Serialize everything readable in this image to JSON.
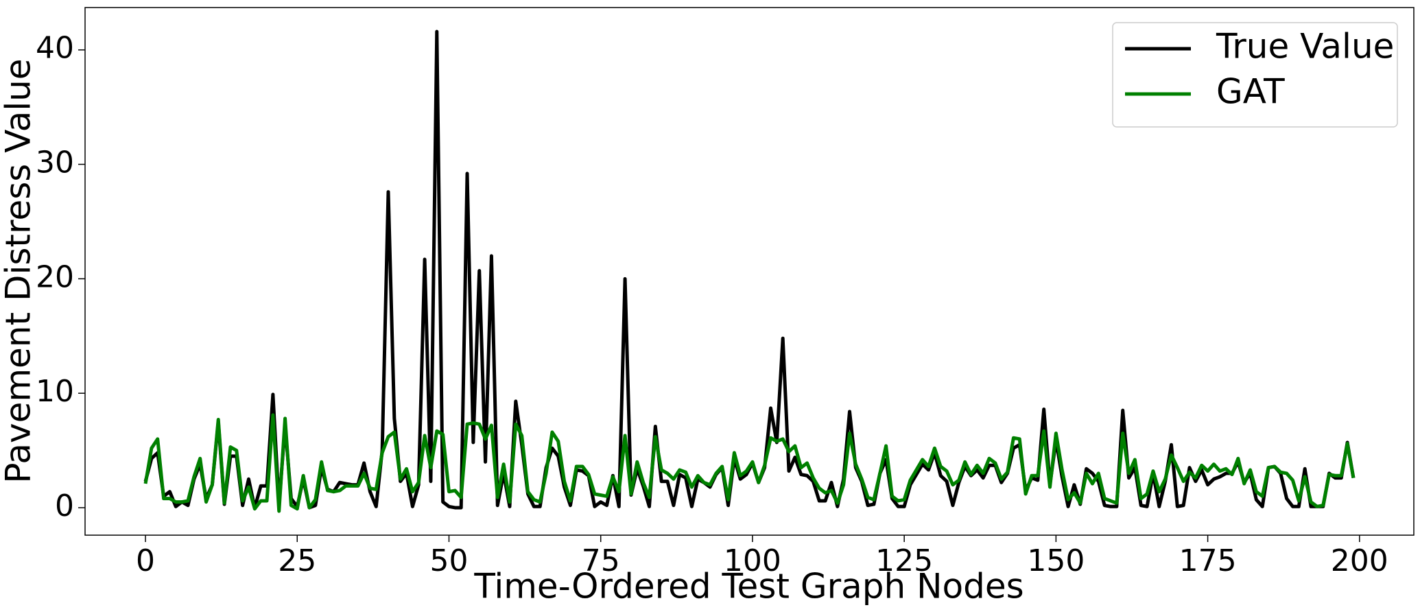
{
  "chart_data": {
    "type": "line",
    "xlabel": "Time-Ordered Test Graph Nodes",
    "ylabel": "Pavement Distress Value",
    "x": [
      0,
      1,
      2,
      3,
      4,
      5,
      6,
      7,
      8,
      9,
      10,
      11,
      12,
      13,
      14,
      15,
      16,
      17,
      18,
      19,
      20,
      21,
      22,
      23,
      24,
      25,
      26,
      27,
      28,
      29,
      30,
      31,
      32,
      33,
      34,
      35,
      36,
      37,
      38,
      39,
      40,
      41,
      42,
      43,
      44,
      45,
      46,
      47,
      48,
      49,
      50,
      51,
      52,
      53,
      54,
      55,
      56,
      57,
      58,
      59,
      60,
      61,
      62,
      63,
      64,
      65,
      66,
      67,
      68,
      69,
      70,
      71,
      72,
      73,
      74,
      75,
      76,
      77,
      78,
      79,
      80,
      81,
      82,
      83,
      84,
      85,
      86,
      87,
      88,
      89,
      90,
      91,
      92,
      93,
      94,
      95,
      96,
      97,
      98,
      99,
      100,
      101,
      102,
      103,
      104,
      105,
      106,
      107,
      108,
      109,
      110,
      111,
      112,
      113,
      114,
      115,
      116,
      117,
      118,
      119,
      120,
      121,
      122,
      123,
      124,
      125,
      126,
      127,
      128,
      129,
      130,
      131,
      132,
      133,
      134,
      135,
      136,
      137,
      138,
      139,
      140,
      141,
      142,
      143,
      144,
      145,
      146,
      147,
      148,
      149,
      150,
      151,
      152,
      153,
      154,
      155,
      156,
      157,
      158,
      159,
      160,
      161,
      162,
      163,
      164,
      165,
      166,
      167,
      168,
      169,
      170,
      171,
      172,
      173,
      174,
      175,
      176,
      177,
      178,
      179,
      180,
      181,
      182,
      183,
      184,
      185,
      186,
      187,
      188,
      189,
      190,
      191,
      192,
      193,
      194,
      195,
      196,
      197,
      198,
      199
    ],
    "series": [
      {
        "name": "True Value",
        "color": "#000000",
        "values": [
          2.3,
          4.3,
          4.8,
          1.0,
          1.4,
          0.1,
          0.5,
          0.2,
          2.5,
          3.8,
          0.8,
          2.0,
          7.5,
          0.3,
          4.5,
          4.5,
          0.2,
          2.5,
          0.0,
          1.9,
          1.9,
          9.9,
          0.2,
          7.2,
          0.8,
          0.1,
          2.5,
          0.0,
          0.2,
          3.5,
          1.6,
          1.4,
          2.2,
          2.1,
          2.0,
          2.0,
          3.9,
          1.4,
          0.1,
          5.0,
          27.6,
          7.8,
          2.3,
          3.0,
          0.1,
          2.0,
          21.7,
          2.3,
          41.6,
          0.5,
          0.1,
          0.0,
          0.0,
          29.2,
          5.7,
          20.7,
          4.0,
          22.0,
          0.2,
          3.0,
          0.1,
          9.3,
          5.5,
          1.2,
          0.1,
          0.1,
          3.5,
          5.2,
          4.5,
          1.8,
          0.2,
          3.3,
          3.2,
          2.8,
          0.1,
          0.5,
          0.2,
          2.8,
          0.1,
          20.0,
          1.1,
          3.4,
          1.9,
          0.1,
          7.1,
          2.3,
          2.3,
          0.2,
          2.9,
          2.6,
          0.1,
          2.5,
          2.2,
          1.8,
          2.9,
          3.5,
          0.2,
          4.3,
          2.5,
          2.9,
          3.9,
          2.2,
          3.5,
          8.7,
          5.7,
          14.8,
          3.2,
          4.4,
          2.9,
          2.8,
          2.3,
          0.6,
          0.6,
          2.2,
          0.1,
          2.5,
          8.4,
          3.5,
          2.3,
          0.2,
          0.3,
          3.0,
          4.2,
          0.8,
          0.1,
          0.1,
          2.0,
          2.9,
          3.8,
          3.3,
          4.8,
          2.8,
          2.3,
          0.2,
          2.2,
          3.6,
          2.8,
          3.3,
          2.6,
          3.7,
          3.7,
          2.2,
          3.0,
          5.2,
          5.5,
          1.5,
          2.6,
          2.4,
          8.6,
          2.0,
          5.9,
          2.7,
          0.1,
          2.0,
          0.3,
          3.4,
          3.0,
          2.3,
          0.2,
          0.1,
          0.1,
          8.5,
          2.6,
          3.5,
          0.2,
          0.1,
          3.0,
          0.1,
          2.3,
          5.5,
          0.1,
          0.2,
          3.5,
          2.3,
          3.3,
          2.0,
          2.5,
          2.7,
          3.0,
          3.0,
          4.0,
          2.2,
          3.0,
          0.7,
          0.1,
          3.5,
          3.6,
          3.0,
          0.8,
          0.1,
          0.1,
          3.4,
          0.1,
          0.1,
          0.1,
          3.0,
          2.6,
          2.6,
          5.7,
          2.6
        ]
      },
      {
        "name": "GAT",
        "color": "#008000",
        "values": [
          2.1,
          5.2,
          6.0,
          0.8,
          0.8,
          0.5,
          0.5,
          0.6,
          2.7,
          4.3,
          0.5,
          2.0,
          7.7,
          0.4,
          5.3,
          5.0,
          0.6,
          1.8,
          -0.1,
          0.6,
          0.6,
          8.1,
          -0.3,
          7.8,
          0.2,
          -0.1,
          2.8,
          0.0,
          0.7,
          4.0,
          1.5,
          1.4,
          1.5,
          1.9,
          1.9,
          1.9,
          3.0,
          1.7,
          1.6,
          4.8,
          6.2,
          6.6,
          2.5,
          3.4,
          1.4,
          2.2,
          6.3,
          3.5,
          6.7,
          6.4,
          1.4,
          1.5,
          0.9,
          7.3,
          7.4,
          7.3,
          6.0,
          7.2,
          0.9,
          3.8,
          0.5,
          7.3,
          6.3,
          1.4,
          0.7,
          0.5,
          3.0,
          6.6,
          5.8,
          2.3,
          0.6,
          3.6,
          3.6,
          2.9,
          1.2,
          1.1,
          1.0,
          2.7,
          1.4,
          6.3,
          1.2,
          4.0,
          2.2,
          0.9,
          6.2,
          3.3,
          3.0,
          2.5,
          3.3,
          3.1,
          1.8,
          2.8,
          2.2,
          2.0,
          3.0,
          3.6,
          0.7,
          4.8,
          2.8,
          3.2,
          4.0,
          2.2,
          3.7,
          6.1,
          5.8,
          6.0,
          4.9,
          5.4,
          3.5,
          3.9,
          2.6,
          1.7,
          1.3,
          1.5,
          0.4,
          2.0,
          6.5,
          3.8,
          2.5,
          0.9,
          0.7,
          3.0,
          5.4,
          1.0,
          0.6,
          0.7,
          2.4,
          3.3,
          4.2,
          3.6,
          5.2,
          3.6,
          3.2,
          2.0,
          2.4,
          4.0,
          2.9,
          3.7,
          3.0,
          4.3,
          3.9,
          2.5,
          3.1,
          6.1,
          6.0,
          1.2,
          2.8,
          2.8,
          6.7,
          1.8,
          6.5,
          3.3,
          0.7,
          1.3,
          0.4,
          3.0,
          2.1,
          3.0,
          0.8,
          0.6,
          0.4,
          6.5,
          3.0,
          4.2,
          0.8,
          1.2,
          3.2,
          1.4,
          2.5,
          4.6,
          3.5,
          2.3,
          3.1,
          2.6,
          3.7,
          3.2,
          3.8,
          3.2,
          3.4,
          2.9,
          4.3,
          2.1,
          3.3,
          1.4,
          1.0,
          3.5,
          3.6,
          3.1,
          3.0,
          2.4,
          0.6,
          2.7,
          0.5,
          0.1,
          0.2,
          2.9,
          2.8,
          2.8,
          5.6,
          2.6
        ]
      }
    ],
    "xlim": [
      -9.95,
      208.95
    ],
    "xticks": [
      0,
      25,
      50,
      75,
      100,
      125,
      150,
      175,
      200
    ],
    "ylim": [
      -2.4,
      43.7
    ],
    "yticks": [
      0,
      10,
      20,
      30,
      40
    ],
    "legend": "upper right"
  }
}
